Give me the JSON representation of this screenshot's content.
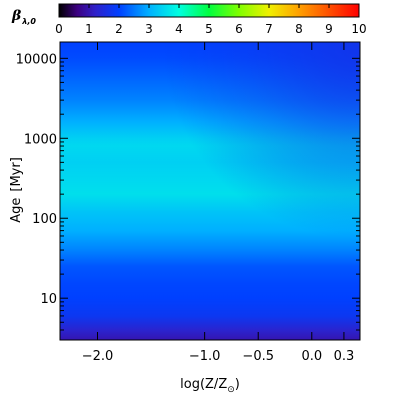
{
  "chart_data": {
    "type": "heatmap",
    "colorbar": {
      "label_main": "β",
      "label_sub": "λ,0",
      "range": [
        0,
        10
      ],
      "ticks": [
        "0",
        "1",
        "2",
        "3",
        "4",
        "5",
        "6",
        "7",
        "8",
        "9",
        "10"
      ],
      "stops": [
        {
          "v": 0,
          "c": "#000000"
        },
        {
          "v": 0.6,
          "c": "#3c0080"
        },
        {
          "v": 1.2,
          "c": "#3020c8"
        },
        {
          "v": 2.0,
          "c": "#0040ff"
        },
        {
          "v": 3.0,
          "c": "#00b0ff"
        },
        {
          "v": 4.0,
          "c": "#00ffe0"
        },
        {
          "v": 5.0,
          "c": "#00ff40"
        },
        {
          "v": 6.0,
          "c": "#80ff00"
        },
        {
          "v": 7.0,
          "c": "#f0f000"
        },
        {
          "v": 8.0,
          "c": "#ffa000"
        },
        {
          "v": 9.0,
          "c": "#ff5000"
        },
        {
          "v": 10.0,
          "c": "#ff0000"
        }
      ]
    },
    "x_axis": {
      "label_main": "log(Z/Z",
      "label_sub": "⊙",
      "label_close": ")",
      "range": [
        -2.35,
        0.45
      ],
      "ticks": [
        {
          "value": -2.0,
          "label": "−2.0"
        },
        {
          "value": -1.0,
          "label": "−1.0"
        },
        {
          "value": -0.5,
          "label": "−0.5"
        },
        {
          "value": 0.0,
          "label": "0.0"
        },
        {
          "value": 0.3,
          "label": "0.3"
        }
      ]
    },
    "y_axis": {
      "label_main": "Age",
      "label_unit": "[Myr]",
      "scale": "log",
      "range": [
        3,
        16000
      ],
      "ticks": [
        {
          "value": 10,
          "label": "10"
        },
        {
          "value": 100,
          "label": "100"
        },
        {
          "value": 1000,
          "label": "1000"
        },
        {
          "value": 10000,
          "label": "10000"
        }
      ]
    },
    "values_by_age": [
      {
        "age": 3,
        "beta": 1.0
      },
      {
        "age": 4,
        "beta": 1.3
      },
      {
        "age": 6,
        "beta": 1.8
      },
      {
        "age": 10,
        "beta": 2.0
      },
      {
        "age": 15,
        "beta": 2.05
      },
      {
        "age": 25,
        "beta": 2.2
      },
      {
        "age": 40,
        "beta": 2.6
      },
      {
        "age": 70,
        "beta": 3.0
      },
      {
        "age": 120,
        "beta": 3.25
      },
      {
        "age": 200,
        "beta": 3.6
      },
      {
        "age": 300,
        "beta": 3.5
      },
      {
        "age": 500,
        "beta": 3.4
      },
      {
        "age": 800,
        "beta": 3.5
      },
      {
        "age": 1000,
        "beta": 3.4
      },
      {
        "age": 1600,
        "beta": 3.0
      },
      {
        "age": 3000,
        "beta": 2.6
      },
      {
        "age": 6000,
        "beta": 2.3
      },
      {
        "age": 10000,
        "beta": 2.1
      },
      {
        "age": 16000,
        "beta": 2.0
      }
    ],
    "old_metal_rich_beta": 1.7
  }
}
